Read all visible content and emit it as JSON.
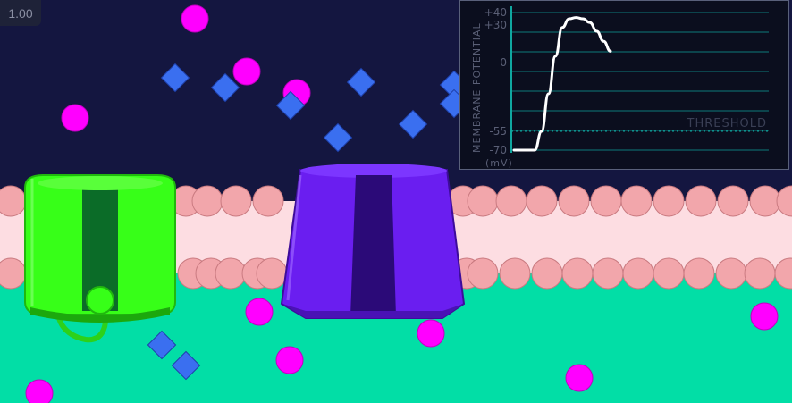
{
  "speed_badge": {
    "value": "1.00"
  },
  "colors": {
    "extracellular": "#141640",
    "membrane": "#fddde2",
    "lipid_head": "#f2a6ab",
    "intracellular": "#02dea6",
    "sodium_ion": "#ff00ff",
    "potassium_ion": "#3a6ff0",
    "leak_channel": "#37ff18",
    "gated_channel": "#6a1ef0",
    "graph_grid": "#10a7a0",
    "graph_trace": "#ffffff"
  },
  "graph": {
    "axis_title": "MEMBRANE POTENTIAL",
    "unit_label": "(mV)",
    "threshold_label": "THRESHOLD",
    "ticks": [
      "+40",
      "+30",
      "0",
      "-55",
      "-70"
    ]
  },
  "chart_data": {
    "type": "line",
    "title": "",
    "ylabel": "MEMBRANE POTENTIAL (mV)",
    "xlabel": "",
    "ylim": [
      -70,
      40
    ],
    "x": [
      0,
      1,
      2,
      3,
      4,
      5,
      6,
      7,
      8,
      9,
      10,
      11,
      12,
      13,
      14
    ],
    "series": [
      {
        "values": [
          -70,
          -70,
          -70,
          -70,
          -55,
          -25,
          5,
          28,
          35,
          36,
          35,
          32,
          25,
          17,
          9
        ]
      }
    ],
    "threshold": -55,
    "grid": true
  },
  "scene": {
    "channels": [
      {
        "name": "leak-channel",
        "color": "green"
      },
      {
        "name": "gated-channel",
        "color": "purple"
      }
    ],
    "ions": [
      {
        "type": "sodium",
        "region": "extracellular"
      },
      {
        "type": "potassium",
        "region": "extracellular"
      },
      {
        "type": "sodium",
        "region": "intracellular"
      },
      {
        "type": "potassium",
        "region": "intracellular"
      }
    ]
  }
}
